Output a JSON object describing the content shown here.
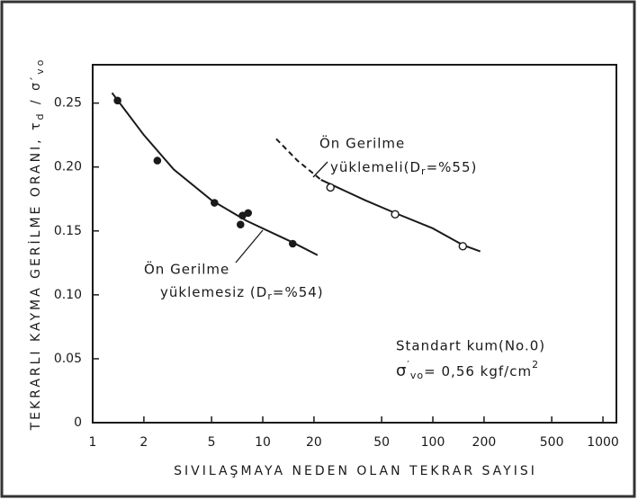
{
  "chart_data": {
    "type": "scatter",
    "xlabel": "SIVILAŞMAYA NEDEN OLAN TEKRAR SAYISI",
    "ylabel_parts": [
      "TEKRARLI KAYMA GERİLME ORANI, τ",
      "d",
      " / σ′",
      "vo"
    ],
    "log_x": true,
    "xlim": [
      1,
      1200
    ],
    "ylim": [
      0,
      0.28
    ],
    "xticks": [
      1,
      2,
      5,
      10,
      20,
      50,
      100,
      200,
      500,
      1000
    ],
    "yticks": [
      0,
      0.05,
      {
        "value": 0.1,
        "label": "0.10"
      },
      0.15,
      {
        "value": 0.2,
        "label": "0.20"
      },
      0.25
    ],
    "series": [
      {
        "marker": "filled",
        "color": "#1a1a1a",
        "x": [
          1.4,
          2.4,
          5.2,
          7.4,
          7.6,
          8.2,
          15
        ],
        "values": [
          0.252,
          0.205,
          0.172,
          0.155,
          0.162,
          0.164,
          0.14
        ]
      },
      {
        "marker": "open",
        "color": "#1a1a1a",
        "x": [
          25,
          60,
          150
        ],
        "values": [
          0.184,
          0.163,
          0.138
        ]
      }
    ],
    "curves": [
      {
        "style": "solid",
        "x": [
          1.3,
          2,
          3,
          5,
          8,
          15,
          21
        ],
        "y": [
          0.258,
          0.225,
          0.198,
          0.174,
          0.158,
          0.141,
          0.131
        ]
      },
      {
        "style": "dashed",
        "x": [
          12,
          16,
          22
        ],
        "y": [
          0.222,
          0.205,
          0.19
        ]
      },
      {
        "style": "solid",
        "x": [
          22,
          40,
          60,
          100,
          150,
          190
        ],
        "y": [
          0.19,
          0.174,
          0.164,
          0.152,
          0.139,
          0.134
        ]
      }
    ],
    "annotations": {
      "upper": {
        "line1": "Ön Gerilme",
        "line2": [
          "yüklemeli(D",
          "r",
          "=%55)"
        ]
      },
      "lower": {
        "line1": "Ön Gerilme",
        "line2": [
          "yüklemesiz (D",
          "r",
          "=%54)"
        ]
      },
      "sand": {
        "line1": "Standart kum(No.0)",
        "line2": [
          "σ",
          "′",
          "vo",
          "= 0,56 kgf/cm",
          "2"
        ]
      }
    }
  }
}
